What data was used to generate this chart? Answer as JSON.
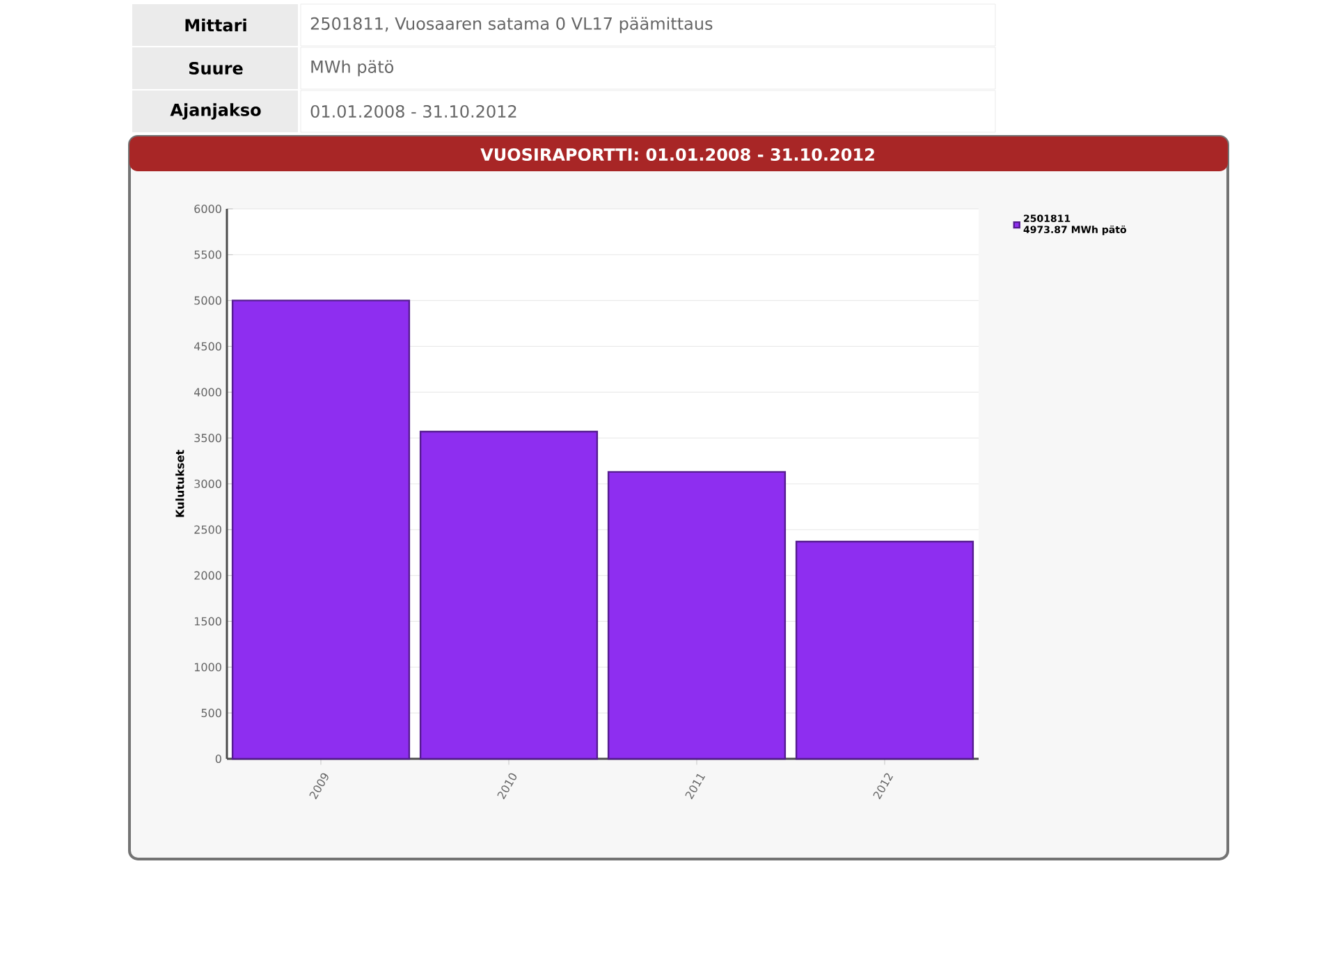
{
  "chart_data": {
    "type": "bar",
    "title": "VUOSIRAPORTTI:  01.01.2008 - 31.10.2012",
    "ylabel": "Kulutukset",
    "categories": [
      "2009",
      "2010",
      "2011",
      "2012"
    ],
    "series": [
      {
        "name": "2501811",
        "color": "#8e2ef0",
        "values": [
          5000,
          3570,
          3130,
          2370
        ]
      }
    ],
    "ylim": [
      0,
      6000
    ],
    "yticks": [
      0,
      500,
      1000,
      1500,
      2000,
      2500,
      3000,
      3500,
      4000,
      4500,
      5000,
      5500,
      6000
    ],
    "grid": "y",
    "legend": "top right",
    "annotations": [
      "4973.87 MWh pätö",
      "Mittari",
      "2501811, Vuosaaren satama 0 VL17 päämittaus",
      "Suure",
      "MWh pätö",
      "Ajanjakso",
      "01.01.2008 - 31.10.2012"
    ]
  }
}
